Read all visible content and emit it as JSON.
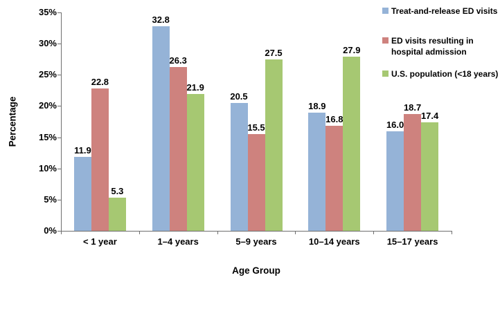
{
  "chart_data": {
    "type": "bar",
    "title": "",
    "categories": [
      "< 1 year",
      "1–4 years",
      "5–9 years",
      "10–14 years",
      "15–17 years"
    ],
    "series": [
      {
        "name": "Treat-and-release ED visits",
        "color": "#95B3D7",
        "values": [
          11.9,
          32.8,
          20.5,
          18.9,
          16.0
        ]
      },
      {
        "name": "ED visits resulting in hospital admission",
        "color": "#CE827E",
        "values": [
          22.8,
          26.3,
          15.5,
          16.8,
          18.7
        ]
      },
      {
        "name": "U.S. population (<18 years)",
        "color": "#A6C872",
        "values": [
          5.3,
          21.9,
          27.5,
          27.9,
          17.4
        ]
      }
    ],
    "legend": [
      {
        "label": "Treat-and-release ED visits",
        "color": "#95B3D7"
      },
      {
        "label": "ED visits resulting in\nhospital admission",
        "color": "#CE827E"
      },
      {
        "label": "U.S. population (<18 years)",
        "color": "#A6C872"
      }
    ],
    "xlabel": "Age Group",
    "ylabel": "Percentage",
    "ylim": [
      0,
      35
    ],
    "ytick_step": 5,
    "ytick_suffix": "%",
    "value_label_decimals": 1,
    "grid": false,
    "legend_position": "top-right",
    "axis_color": "#6e6e6e",
    "text_color": "#000000",
    "background_color": "#ffffff"
  }
}
